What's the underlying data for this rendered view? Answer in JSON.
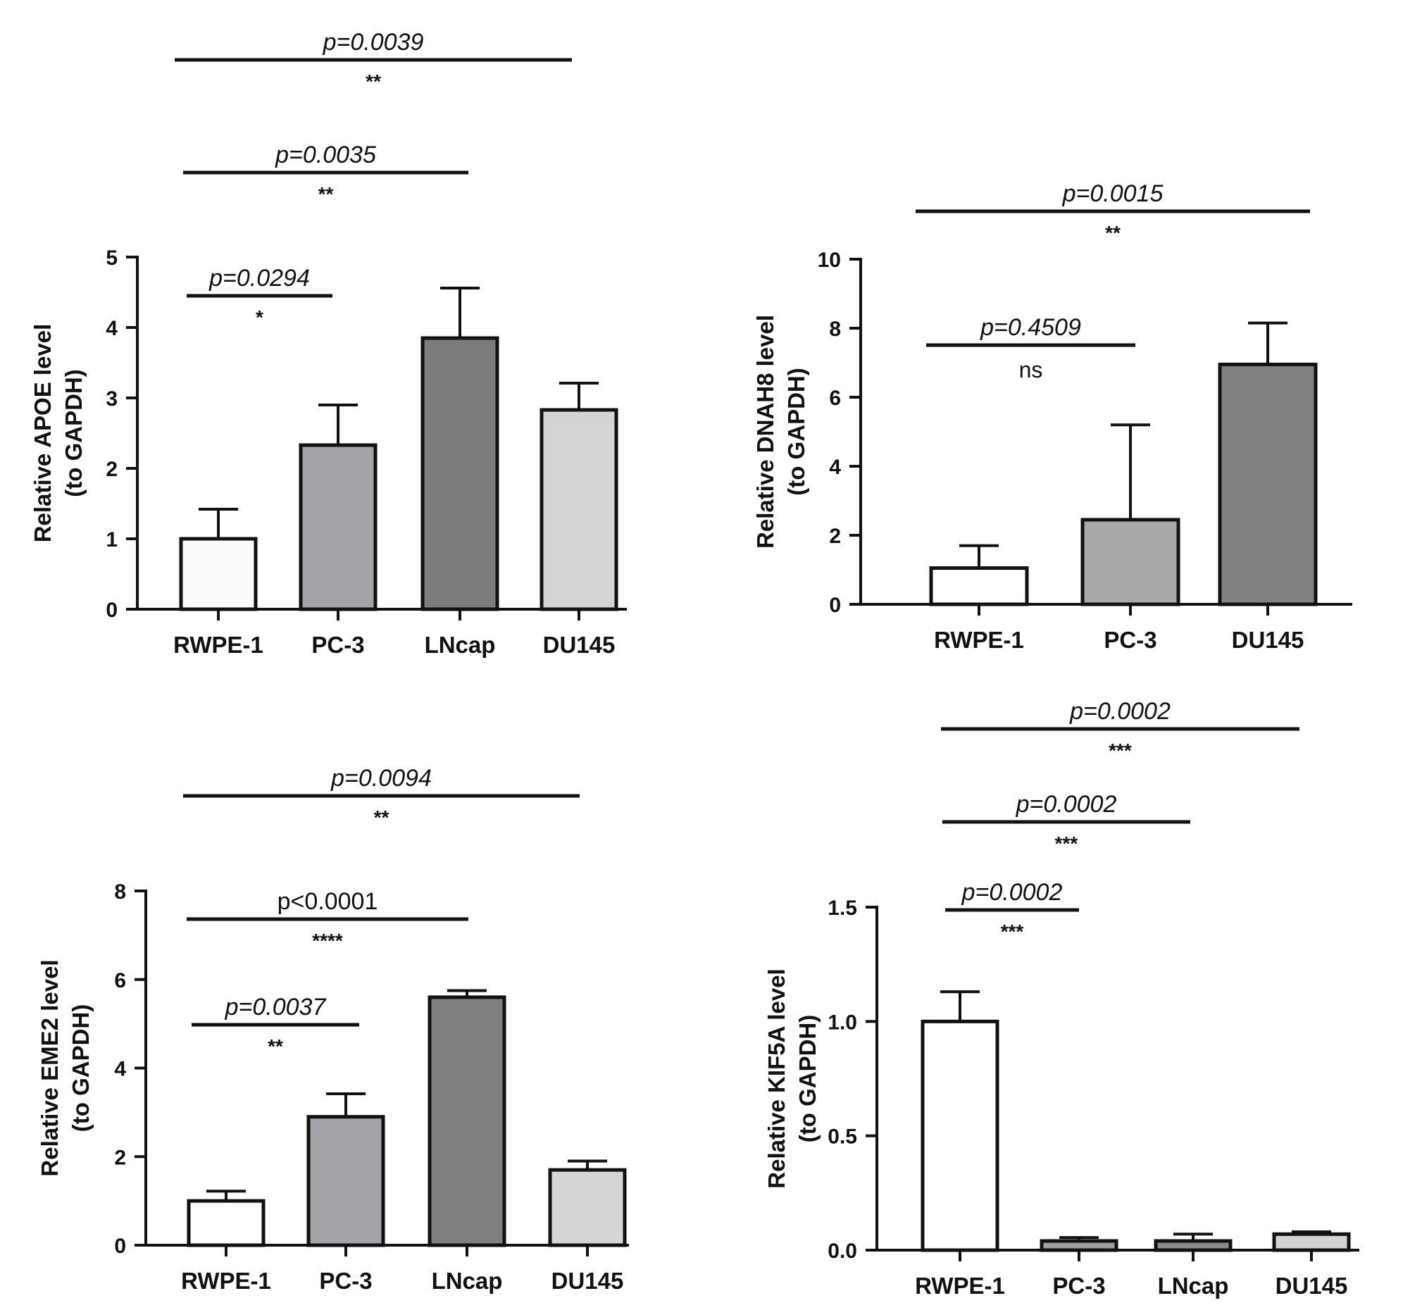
{
  "figure": {
    "panels_count": 4
  },
  "chart_data": [
    {
      "id": "apoe",
      "type": "bar",
      "title": "",
      "ylabel_line1": "Relative APOE level",
      "ylabel_line2": "(to GAPDH)",
      "xlabel": "",
      "ylim": [
        0,
        5
      ],
      "yticks": [
        0,
        1,
        2,
        3,
        4,
        5
      ],
      "ytick_labels": [
        "0",
        "1",
        "2",
        "3",
        "4",
        "5"
      ],
      "categories": [
        "RWPE-1",
        "PC-3",
        "LNcap",
        "DU145"
      ],
      "values": [
        1.0,
        2.33,
        3.85,
        2.83
      ],
      "errors": [
        0.42,
        0.57,
        0.71,
        0.38
      ],
      "bar_colors": [
        "#fbfbfb",
        "#a3a3a8",
        "#7c7c7c",
        "#d4d4d4"
      ],
      "comparisons": [
        {
          "from": 0,
          "to": 1,
          "p": "p=0.0294",
          "stars": "*",
          "italic": true
        },
        {
          "from": 0,
          "to": 2,
          "p": "p=0.0035",
          "stars": "**",
          "italic": true
        },
        {
          "from": 0,
          "to": 3,
          "p": "p=0.0039",
          "stars": "**",
          "italic": true
        }
      ]
    },
    {
      "id": "dnah8",
      "type": "bar",
      "title": "",
      "ylabel_line1": "Relative DNAH8 level",
      "ylabel_line2": "(to GAPDH)",
      "xlabel": "",
      "ylim": [
        0,
        10
      ],
      "yticks": [
        0,
        2,
        4,
        6,
        8,
        10
      ],
      "ytick_labels": [
        "0",
        "2",
        "4",
        "6",
        "8",
        "10"
      ],
      "categories": [
        "RWPE-1",
        "PC-3",
        "DU145"
      ],
      "values": [
        1.05,
        2.45,
        6.95
      ],
      "errors": [
        0.65,
        2.75,
        1.2
      ],
      "bar_colors": [
        "#ffffff",
        "#a9a9a9",
        "#828282"
      ],
      "comparisons": [
        {
          "from": 0,
          "to": 1,
          "p": "p=0.4509",
          "stars": "ns",
          "italic": true
        },
        {
          "from": 0,
          "to": 2,
          "p": "p=0.0015",
          "stars": "**",
          "italic": true
        }
      ]
    },
    {
      "id": "eme2",
      "type": "bar",
      "title": "",
      "ylabel_line1": "Relative EME2 level",
      "ylabel_line2": "(to GAPDH)",
      "xlabel": "",
      "ylim": [
        0,
        8
      ],
      "yticks": [
        0,
        2,
        4,
        6,
        8
      ],
      "ytick_labels": [
        "0",
        "2",
        "4",
        "6",
        "8"
      ],
      "categories": [
        "RWPE-1",
        "PC-3",
        "LNcap",
        "DU145"
      ],
      "values": [
        1.0,
        2.9,
        5.6,
        1.7
      ],
      "errors": [
        0.22,
        0.52,
        0.15,
        0.2
      ],
      "bar_colors": [
        "#ffffff",
        "#a3a3a8",
        "#808080",
        "#d6d6d6"
      ],
      "comparisons": [
        {
          "from": 0,
          "to": 1,
          "p": "p=0.0037",
          "stars": "**",
          "italic": true
        },
        {
          "from": 0,
          "to": 2,
          "p": "p<0.0001",
          "stars": "****",
          "italic": false
        },
        {
          "from": 0,
          "to": 3,
          "p": "p=0.0094",
          "stars": "**",
          "italic": true
        }
      ]
    },
    {
      "id": "kif5a",
      "type": "bar",
      "title": "",
      "ylabel_line1": "Relative KIF5A level",
      "ylabel_line2": "(to GAPDH)",
      "xlabel": "",
      "ylim": [
        0,
        1.5
      ],
      "yticks": [
        0,
        0.5,
        1.0,
        1.5
      ],
      "ytick_labels": [
        "0.0",
        "0.5",
        "1.0",
        "1.5"
      ],
      "categories": [
        "RWPE-1",
        "PC-3",
        "LNcap",
        "DU145"
      ],
      "values": [
        1.0,
        0.04,
        0.04,
        0.07
      ],
      "errors": [
        0.13,
        0.015,
        0.03,
        0.01
      ],
      "bar_colors": [
        "#ffffff",
        "#a0a0a0",
        "#8a8a8a",
        "#d3d3d3"
      ],
      "comparisons": [
        {
          "from": 0,
          "to": 1,
          "p": "p=0.0002",
          "stars": "***",
          "italic": true
        },
        {
          "from": 0,
          "to": 2,
          "p": "p=0.0002",
          "stars": "***",
          "italic": true
        },
        {
          "from": 0,
          "to": 3,
          "p": "p=0.0002",
          "stars": "***",
          "italic": true
        }
      ]
    }
  ]
}
